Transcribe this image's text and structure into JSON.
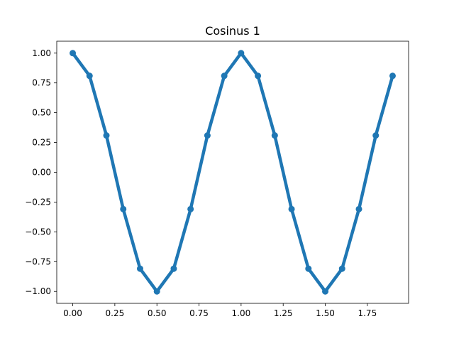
{
  "chart_data": {
    "type": "line",
    "title": "Cosinus 1",
    "xlabel": "",
    "ylabel": "",
    "xlim": [
      -0.095,
      1.995
    ],
    "ylim": [
      -1.1,
      1.1
    ],
    "grid": false,
    "x_ticks": [
      0.0,
      0.25,
      0.5,
      0.75,
      1.0,
      1.25,
      1.5,
      1.75
    ],
    "x_tick_labels": [
      "0.00",
      "0.25",
      "0.50",
      "0.75",
      "1.00",
      "1.25",
      "1.50",
      "1.75"
    ],
    "y_ticks": [
      -1.0,
      -0.75,
      -0.5,
      -0.25,
      0.0,
      0.25,
      0.5,
      0.75,
      1.0
    ],
    "y_tick_labels": [
      "−1.00",
      "−0.75",
      "−0.50",
      "−0.25",
      "0.00",
      "0.25",
      "0.50",
      "0.75",
      "1.00"
    ],
    "series": [
      {
        "color": "#1f77b4",
        "marker": "circle",
        "x": [
          0.0,
          0.1,
          0.2,
          0.3,
          0.4,
          0.5,
          0.6,
          0.7,
          0.8,
          0.9,
          1.0,
          1.1,
          1.2,
          1.3,
          1.4,
          1.5,
          1.6,
          1.7,
          1.8,
          1.9
        ],
        "y": [
          1.0,
          0.809,
          0.309,
          -0.309,
          -0.809,
          -1.0,
          -0.809,
          -0.309,
          0.309,
          0.809,
          1.0,
          0.809,
          0.309,
          -0.309,
          -0.809,
          -1.0,
          -0.809,
          -0.309,
          0.309,
          0.809
        ]
      }
    ]
  }
}
